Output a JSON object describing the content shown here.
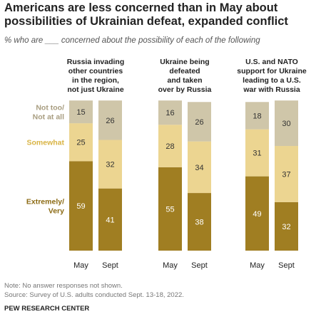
{
  "header": {
    "title": "Americans are less concerned than in May about\npossibilities of Ukrainian defeat, expanded conflict",
    "subtitle": "% who are ___ concerned about the possibility of each of the following"
  },
  "chart_data": [
    {
      "type": "bar",
      "stacked": true,
      "title": "Russia invading\nother countries\nin the region,\nnot just Ukraine",
      "categories": [
        "May",
        "Sept"
      ],
      "series": [
        {
          "name": "Extremely/\nVery",
          "color": "#a07e22",
          "values": [
            59,
            41
          ]
        },
        {
          "name": "Somewhat",
          "color": "#ecd591",
          "values": [
            25,
            32
          ]
        },
        {
          "name": "Not too/\nNot at all",
          "color": "#cfc6a9",
          "values": [
            15,
            26
          ]
        }
      ]
    },
    {
      "type": "bar",
      "stacked": true,
      "title": "Ukraine being\ndefeated\nand taken\nover by Russia",
      "categories": [
        "May",
        "Sept"
      ],
      "series": [
        {
          "color": "#a07e22",
          "values": [
            55,
            38
          ]
        },
        {
          "color": "#ecd591",
          "values": [
            28,
            34
          ]
        },
        {
          "color": "#cfc6a9",
          "values": [
            16,
            26
          ]
        }
      ]
    },
    {
      "type": "bar",
      "stacked": true,
      "title": "U.S. and NATO\nsupport for Ukraine\nleading to a U.S.\nwar with Russia",
      "categories": [
        "May",
        "Sept"
      ],
      "series": [
        {
          "color": "#a07e22",
          "values": [
            49,
            32
          ]
        },
        {
          "color": "#ecd591",
          "values": [
            31,
            37
          ]
        },
        {
          "color": "#cfc6a9",
          "values": [
            18,
            30
          ]
        }
      ]
    }
  ],
  "footer": {
    "note": "Note: No answer responses not shown.",
    "source": "Source: Survey of U.S. adults conducted Sept. 13-18, 2022.",
    "credit": "PEW RESEARCH CENTER"
  }
}
